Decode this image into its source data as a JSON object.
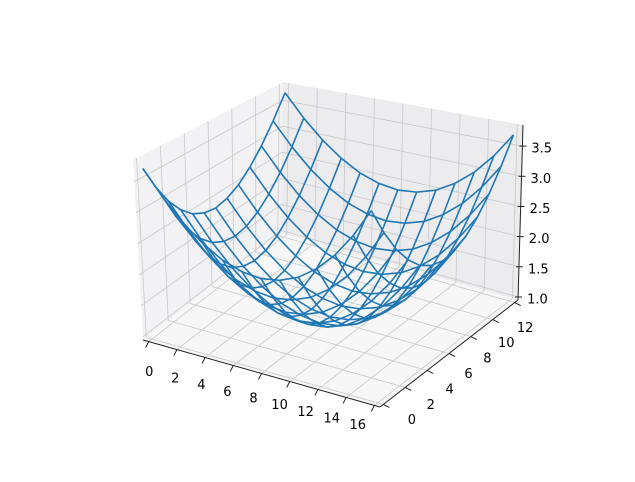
{
  "chart_data": {
    "type": "wireframe",
    "title": "",
    "xlabel": "",
    "ylabel": "",
    "zlabel": "",
    "xlim": [
      -0.4,
      16.4
    ],
    "ylim": [
      -0.3,
      12.3
    ],
    "zlim": [
      0.95,
      3.85
    ],
    "xticks": [
      "0",
      "2",
      "4",
      "6",
      "8",
      "10",
      "12",
      "14",
      "16"
    ],
    "yticks": [
      "0",
      "2",
      "4",
      "6",
      "8",
      "10",
      "12"
    ],
    "zticks": [
      "1.0",
      "1.5",
      "2.0",
      "2.5",
      "3.0",
      "3.5"
    ],
    "grid": true,
    "color": "#1f77b4",
    "x": [
      0,
      1.33,
      2.67,
      4,
      5.33,
      6.67,
      8,
      9.33,
      10.67,
      12,
      13.33,
      14.67,
      16
    ],
    "y": [
      0,
      1,
      2,
      3,
      4,
      5,
      6,
      7,
      8,
      9,
      10,
      11,
      12
    ],
    "z": [
      [
        3.7,
        3.29,
        2.95,
        2.69,
        2.5,
        2.39,
        2.35,
        2.39,
        2.5,
        2.69,
        2.95,
        3.29,
        3.7
      ],
      [
        3.29,
        2.88,
        2.54,
        2.28,
        2.09,
        1.98,
        1.94,
        1.98,
        2.09,
        2.28,
        2.54,
        2.88,
        3.29
      ],
      [
        2.95,
        2.54,
        2.2,
        1.94,
        1.75,
        1.64,
        1.6,
        1.64,
        1.75,
        1.94,
        2.2,
        2.54,
        2.95
      ],
      [
        2.69,
        2.28,
        1.94,
        1.68,
        1.49,
        1.38,
        1.34,
        1.38,
        1.49,
        1.68,
        1.94,
        2.28,
        2.69
      ],
      [
        2.5,
        2.09,
        1.75,
        1.49,
        1.3,
        1.19,
        1.15,
        1.19,
        1.3,
        1.49,
        1.75,
        2.09,
        2.5
      ],
      [
        2.39,
        1.98,
        1.64,
        1.38,
        1.19,
        1.08,
        1.04,
        1.08,
        1.19,
        1.38,
        1.64,
        1.98,
        2.39
      ],
      [
        2.35,
        1.94,
        1.6,
        1.34,
        1.15,
        1.04,
        1.0,
        1.04,
        1.15,
        1.34,
        1.6,
        1.94,
        2.35
      ],
      [
        2.39,
        1.98,
        1.64,
        1.38,
        1.19,
        1.08,
        1.04,
        1.08,
        1.19,
        1.38,
        1.64,
        1.98,
        2.39
      ],
      [
        2.5,
        2.09,
        1.75,
        1.49,
        1.3,
        1.19,
        1.15,
        1.19,
        1.3,
        1.49,
        1.75,
        2.09,
        2.5
      ],
      [
        2.69,
        2.28,
        1.94,
        1.68,
        1.49,
        1.38,
        1.34,
        1.38,
        1.49,
        1.68,
        1.94,
        2.28,
        2.69
      ],
      [
        2.95,
        2.54,
        2.2,
        1.94,
        1.75,
        1.64,
        1.6,
        1.64,
        1.75,
        1.94,
        2.2,
        2.54,
        2.95
      ],
      [
        3.29,
        2.88,
        2.54,
        2.28,
        2.09,
        1.98,
        1.94,
        1.98,
        2.09,
        2.28,
        2.54,
        2.88,
        3.29
      ],
      [
        3.7,
        3.29,
        2.95,
        2.69,
        2.5,
        2.39,
        2.35,
        2.39,
        2.5,
        2.69,
        2.95,
        3.29,
        3.7
      ]
    ]
  }
}
